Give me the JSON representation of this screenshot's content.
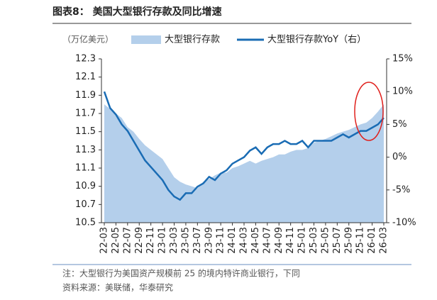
{
  "chart_data": {
    "type": "area-line",
    "title": "图表8：  美国大型银行存款及同比增速",
    "unit_label": "（万亿美元）",
    "note": "注：大型银行为美国资产规模前 25 的境内特许商业银行，下同",
    "source": "资料来源：美联储，华泰研究",
    "categories": [
      "22-03",
      null,
      "22-05",
      null,
      "22-07",
      null,
      "22-09",
      null,
      "22-11",
      null,
      "23-01",
      null,
      "23-03",
      null,
      "23-05",
      null,
      "23-07",
      null,
      "23-09",
      null,
      "23-11",
      null,
      "24-01",
      null,
      "24-03",
      null,
      "24-05",
      null,
      "24-07",
      null,
      "24-09",
      null,
      "24-11",
      null,
      "25-01",
      null,
      "25-03",
      null,
      "25-05",
      null,
      "25-07",
      null,
      "25-09",
      null,
      "25-11",
      null,
      "26-01",
      null,
      "26-03"
    ],
    "series": [
      {
        "name": "大型银行存款",
        "color": "#b4cfeb",
        "axis": "y",
        "values": [
          11.8,
          11.75,
          11.7,
          11.65,
          11.55,
          11.5,
          11.42,
          11.35,
          11.3,
          11.25,
          11.2,
          11.1,
          11.0,
          10.95,
          10.92,
          10.9,
          10.88,
          10.95,
          10.98,
          11.02,
          11.05,
          11.05,
          11.1,
          11.12,
          11.15,
          11.18,
          11.15,
          11.18,
          11.2,
          11.22,
          11.25,
          11.25,
          11.28,
          11.3,
          11.3,
          11.32,
          11.38,
          11.4,
          11.42,
          11.45,
          11.48,
          11.5,
          11.52,
          11.55,
          11.58,
          11.6,
          11.65,
          11.72,
          11.8
        ]
      },
      {
        "name": "大型银行存款YoY（右）",
        "color": "#1a6cb4",
        "axis": "y2",
        "values": [
          10.0,
          7.5,
          6.5,
          5.0,
          4.0,
          2.5,
          1.0,
          -0.5,
          -1.5,
          -2.5,
          -3.5,
          -5.0,
          -6.0,
          -6.5,
          -5.5,
          -5.5,
          -4.5,
          -4.0,
          -3.0,
          -3.5,
          -2.5,
          -2.0,
          -1.0,
          -0.5,
          0.0,
          1.0,
          1.5,
          0.5,
          1.5,
          2.0,
          2.0,
          2.5,
          2.0,
          2.0,
          2.5,
          1.5,
          2.5,
          2.5,
          2.5,
          2.5,
          3.0,
          3.5,
          3.0,
          3.5,
          4.0,
          4.0,
          4.5,
          5.0,
          6.0
        ]
      }
    ],
    "ylim": [
      10.5,
      12.3
    ],
    "yticks": [
      10.5,
      10.7,
      10.9,
      11.1,
      11.3,
      11.5,
      11.7,
      11.9,
      12.1,
      12.3
    ],
    "y2lim": [
      -10,
      15
    ],
    "y2ticks": [
      {
        "value": -10,
        "label": "-10%"
      },
      {
        "value": -5,
        "label": "-5%"
      },
      {
        "value": 0,
        "label": "0%"
      },
      {
        "value": 5,
        "label": "5%"
      },
      {
        "value": 10,
        "label": "10%"
      },
      {
        "value": 15,
        "label": "15%"
      }
    ]
  }
}
